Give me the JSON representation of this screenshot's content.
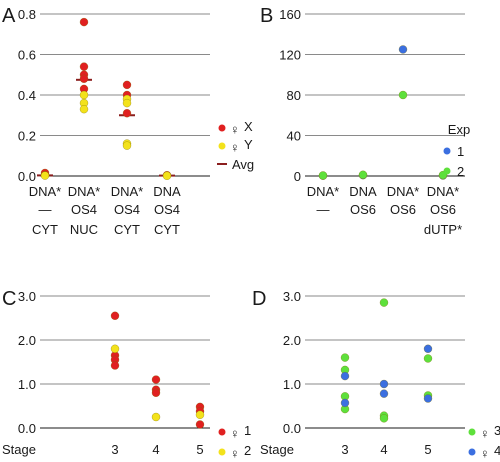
{
  "colors": {
    "red": "#e02020",
    "yellow": "#f3e21b",
    "blue": "#3b6fe0",
    "green": "#5ee03b",
    "avg": "#8b1e1e"
  },
  "chart_data": [
    {
      "panel": "A",
      "type": "scatter",
      "ylim": [
        0,
        0.8
      ],
      "yticks": [
        "0.0",
        "0.2",
        "0.4",
        "0.6",
        "0.8"
      ],
      "ytick_values": [
        0,
        0.2,
        0.4,
        0.6,
        0.8
      ],
      "grid": true,
      "categories": [
        [
          "DNA*",
          "—",
          "CYT"
        ],
        [
          "DNA*",
          "OS4",
          "NUC"
        ],
        [
          "DNA*",
          "OS4",
          "CYT"
        ],
        [
          "DNA",
          "OS4",
          "CYT"
        ]
      ],
      "series": [
        {
          "name": "X",
          "symbol": "♀",
          "color": "#e02020",
          "points": [
            [
              1,
              0.015
            ],
            [
              1,
              0.005
            ],
            [
              2,
              0.76
            ],
            [
              2,
              0.54
            ],
            [
              2,
              0.5
            ],
            [
              2,
              0.48
            ],
            [
              2,
              0.43
            ],
            [
              3,
              0.45
            ],
            [
              3,
              0.4
            ],
            [
              3,
              0.31
            ],
            [
              4,
              0.004
            ]
          ]
        },
        {
          "name": "Y",
          "symbol": "♀",
          "color": "#f3e21b",
          "points": [
            [
              1,
              0.002
            ],
            [
              2,
              0.4
            ],
            [
              2,
              0.36
            ],
            [
              2,
              0.33
            ],
            [
              3,
              0.38
            ],
            [
              3,
              0.36
            ],
            [
              3,
              0.16
            ],
            [
              3,
              0.15
            ],
            [
              4,
              0.001
            ]
          ]
        }
      ],
      "avg": {
        "name": "Avg",
        "color": "#8b1e1e",
        "values": [
          0.003,
          0.475,
          0.3,
          0.002
        ]
      }
    },
    {
      "panel": "B",
      "type": "scatter",
      "ylim": [
        0,
        160
      ],
      "yticks": [
        "0",
        "40",
        "80",
        "120",
        "160"
      ],
      "ytick_values": [
        0,
        40,
        80,
        120,
        160
      ],
      "grid": true,
      "categories": [
        [
          "DNA*",
          "—"
        ],
        [
          "DNA",
          "OS6"
        ],
        [
          "DNA*",
          "OS6"
        ],
        [
          "DNA*",
          "OS6",
          "dUTP*"
        ]
      ],
      "legend_title": "Exp",
      "series": [
        {
          "name": "1",
          "color": "#3b6fe0",
          "points": [
            [
              1,
              0.3
            ],
            [
              2,
              0.8
            ],
            [
              3,
              125
            ],
            [
              4,
              0.5
            ]
          ]
        },
        {
          "name": "2",
          "color": "#5ee03b",
          "points": [
            [
              1,
              0.5
            ],
            [
              2,
              1.2
            ],
            [
              3,
              80
            ],
            [
              4,
              0.9
            ]
          ]
        }
      ]
    },
    {
      "panel": "C",
      "type": "scatter",
      "ylim": [
        0,
        3
      ],
      "yticks": [
        "0.0",
        "1.0",
        "2.0",
        "3.0"
      ],
      "ytick_values": [
        0,
        1,
        2,
        3
      ],
      "grid": true,
      "xlabel": "Stage",
      "categories": [
        "3",
        "4",
        "5"
      ],
      "series": [
        {
          "name": "1",
          "symbol": "♀",
          "color": "#e02020",
          "points": [
            [
              3,
              2.55
            ],
            [
              3,
              1.65
            ],
            [
              3,
              1.55
            ],
            [
              3,
              1.42
            ],
            [
              4,
              1.1
            ],
            [
              4,
              0.87
            ],
            [
              4,
              0.8
            ],
            [
              5,
              0.48
            ],
            [
              5,
              0.38
            ],
            [
              5,
              0.08
            ]
          ]
        },
        {
          "name": "2",
          "symbol": "♀",
          "color": "#f3e21b",
          "points": [
            [
              3,
              1.8
            ],
            [
              4,
              0.25
            ],
            [
              5,
              0.3
            ]
          ]
        }
      ]
    },
    {
      "panel": "D",
      "type": "scatter",
      "ylim": [
        0,
        3
      ],
      "yticks": [
        "0.0",
        "1.0",
        "2.0",
        "3.0"
      ],
      "ytick_values": [
        0,
        1,
        2,
        3
      ],
      "grid": true,
      "xlabel": "Stage",
      "categories": [
        "3",
        "4",
        "5"
      ],
      "series": [
        {
          "name": "3",
          "symbol": "♀",
          "color": "#5ee03b",
          "points": [
            [
              3,
              1.6
            ],
            [
              3,
              1.32
            ],
            [
              3,
              0.72
            ],
            [
              3,
              0.43
            ],
            [
              4,
              2.85
            ],
            [
              4,
              0.28
            ],
            [
              4,
              0.22
            ],
            [
              5,
              1.58
            ],
            [
              5,
              0.74
            ]
          ]
        },
        {
          "name": "4",
          "symbol": "♀",
          "color": "#3b6fe0",
          "points": [
            [
              3,
              1.18
            ],
            [
              3,
              0.57
            ],
            [
              4,
              1.0
            ],
            [
              4,
              0.78
            ],
            [
              5,
              1.8
            ],
            [
              5,
              0.67
            ]
          ]
        }
      ]
    }
  ]
}
